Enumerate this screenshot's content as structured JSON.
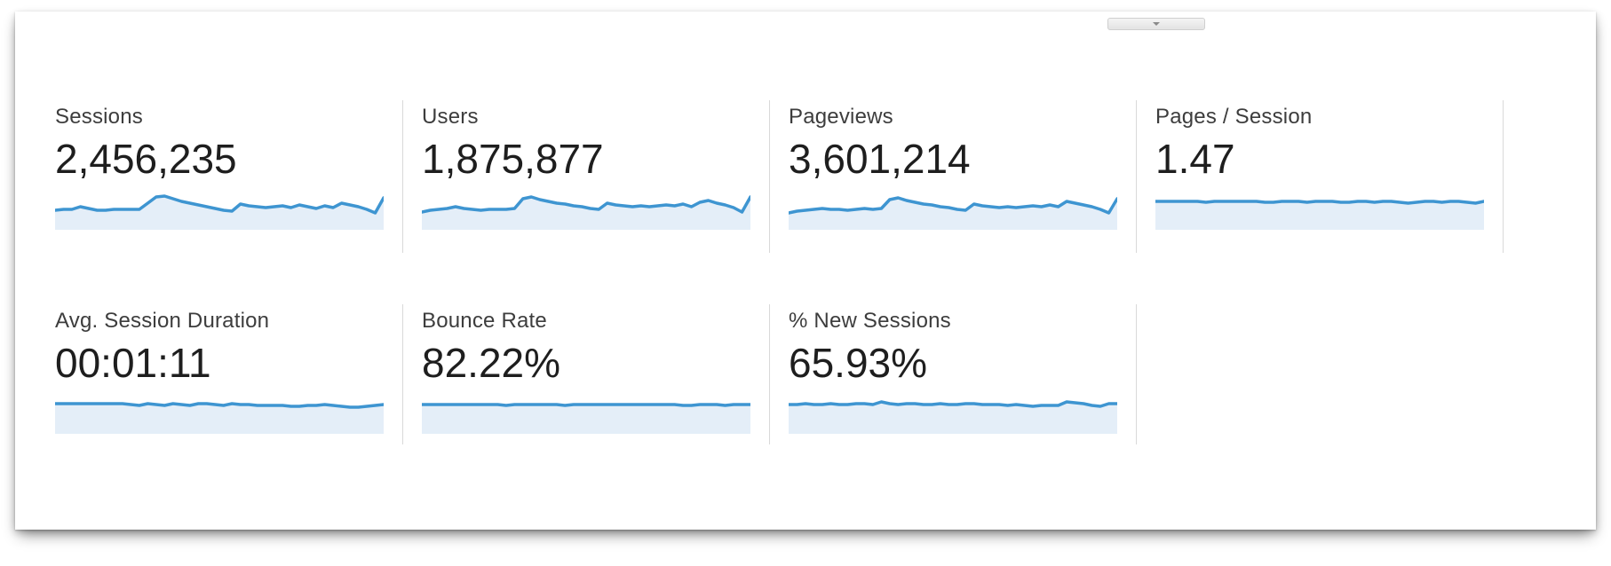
{
  "panel": {
    "collapse_button": {
      "icon": "chevron-down"
    }
  },
  "colors": {
    "spark_line": "#3e95d1",
    "spark_fill": "#e4eef8",
    "divider": "#d9d9d9"
  },
  "metrics": [
    {
      "label": "Sessions",
      "value": "2,456,235",
      "row": 1,
      "spark": [
        22,
        21,
        21,
        18,
        20,
        22,
        22,
        21,
        21,
        21,
        21,
        14,
        7,
        6,
        9,
        12,
        14,
        16,
        18,
        20,
        22,
        23,
        15,
        17,
        18,
        19,
        18,
        17,
        19,
        16,
        18,
        20,
        17,
        19,
        14,
        16,
        18,
        21,
        25,
        8
      ]
    },
    {
      "label": "Users",
      "value": "1,875,877",
      "row": 1,
      "spark": [
        24,
        22,
        21,
        20,
        18,
        20,
        21,
        22,
        21,
        21,
        21,
        20,
        9,
        7,
        10,
        12,
        14,
        15,
        17,
        18,
        20,
        21,
        14,
        16,
        17,
        18,
        17,
        18,
        17,
        16,
        17,
        15,
        18,
        13,
        11,
        14,
        16,
        19,
        24,
        7
      ]
    },
    {
      "label": "Pageviews",
      "value": "3,601,214",
      "row": 1,
      "spark": [
        25,
        23,
        22,
        21,
        20,
        21,
        21,
        22,
        21,
        20,
        21,
        20,
        10,
        8,
        11,
        13,
        15,
        16,
        18,
        19,
        21,
        22,
        15,
        17,
        18,
        19,
        18,
        19,
        18,
        17,
        18,
        16,
        18,
        12,
        14,
        16,
        18,
        21,
        25,
        9
      ]
    },
    {
      "label": "Pages / Session",
      "value": "1.47",
      "row": 1,
      "spark": [
        12,
        12,
        12,
        12,
        12,
        12,
        13,
        12,
        12,
        12,
        12,
        12,
        12,
        13,
        13,
        12,
        12,
        12,
        13,
        12,
        12,
        12,
        13,
        13,
        12,
        12,
        13,
        12,
        12,
        13,
        14,
        13,
        12,
        12,
        13,
        12,
        12,
        13,
        14,
        12
      ]
    },
    {
      "label": "Avg. Session Duration",
      "value": "00:01:11",
      "row": 2,
      "spark": [
        10,
        10,
        10,
        10,
        10,
        10,
        10,
        10,
        10,
        11,
        12,
        10,
        11,
        12,
        10,
        11,
        12,
        10,
        10,
        11,
        12,
        10,
        11,
        11,
        12,
        12,
        12,
        12,
        13,
        13,
        12,
        12,
        11,
        12,
        13,
        14,
        14,
        13,
        12,
        11
      ]
    },
    {
      "label": "Bounce Rate",
      "value": "82.22%",
      "row": 2,
      "spark": [
        11,
        11,
        11,
        11,
        11,
        11,
        11,
        11,
        11,
        11,
        12,
        11,
        11,
        11,
        11,
        11,
        11,
        12,
        11,
        11,
        11,
        11,
        11,
        11,
        11,
        11,
        11,
        11,
        11,
        11,
        11,
        12,
        12,
        11,
        11,
        11,
        12,
        11,
        11,
        11
      ]
    },
    {
      "label": "% New Sessions",
      "value": "65.93%",
      "row": 2,
      "spark": [
        11,
        11,
        10,
        11,
        11,
        10,
        11,
        11,
        10,
        10,
        11,
        8,
        10,
        11,
        10,
        10,
        11,
        11,
        10,
        11,
        11,
        10,
        10,
        11,
        11,
        11,
        12,
        11,
        12,
        13,
        12,
        12,
        12,
        8,
        9,
        10,
        12,
        13,
        10,
        10
      ]
    }
  ]
}
